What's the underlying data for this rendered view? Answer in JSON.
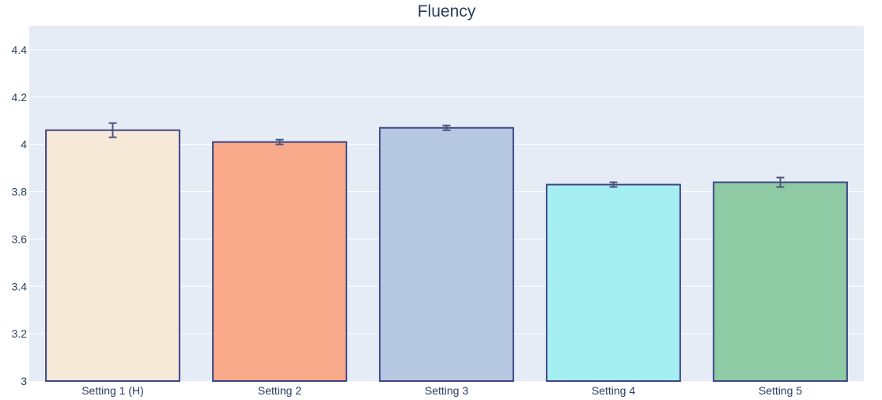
{
  "chart_data": {
    "type": "bar",
    "title": "Fluency",
    "xlabel": "",
    "ylabel": "",
    "categories": [
      "Setting 1 (H)",
      "Setting 2",
      "Setting 3",
      "Setting 4",
      "Setting 5"
    ],
    "values": [
      4.06,
      4.01,
      4.07,
      3.83,
      3.84
    ],
    "error": [
      0.03,
      0.01,
      0.01,
      0.01,
      0.02
    ],
    "bar_colors": [
      "#f7e9d8",
      "#f9aa8a",
      "#b7c8e2",
      "#a5eff2",
      "#8ecba4"
    ],
    "bar_outline_color": "#3f4584",
    "error_bar_color": "#4a5478",
    "plot_background": "#e5ecf6",
    "grid": true,
    "ylim": [
      3,
      4.5
    ],
    "yticks": [
      3,
      3.2,
      3.4,
      3.6,
      3.8,
      4,
      4.2,
      4.4
    ],
    "ytick_labels": [
      "3",
      "3.2",
      "3.4",
      "3.6",
      "3.8",
      "4",
      "4.2",
      "4.4"
    ],
    "legend": "none"
  }
}
